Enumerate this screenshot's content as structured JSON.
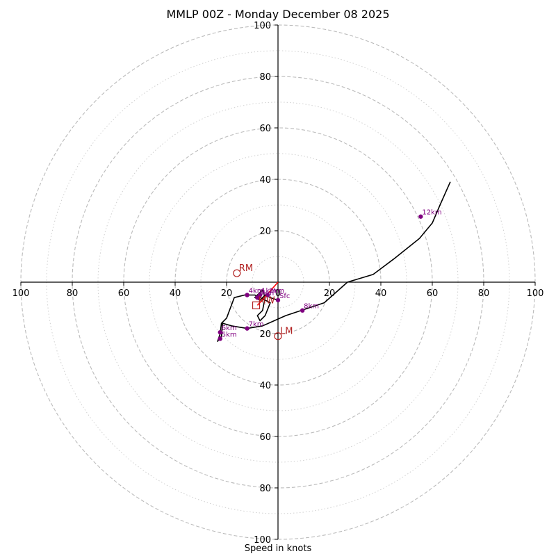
{
  "chart_data": {
    "type": "scatter",
    "subtype": "hodograph",
    "title": "MMLP 00Z - Monday December 08 2025",
    "xlabel": "Speed in knots",
    "ylabel": "",
    "xlim": [
      -100,
      100
    ],
    "ylim": [
      -100,
      100
    ],
    "rings_dashed": [
      20,
      40,
      60,
      80,
      100
    ],
    "rings_dotted": [
      10,
      30,
      50,
      70,
      90
    ],
    "x_tick_labels": [
      "100",
      "80",
      "60",
      "40",
      "20",
      "0",
      "20",
      "40",
      "60",
      "80",
      "100"
    ],
    "x_tick_values": [
      -100,
      -80,
      -60,
      -40,
      -20,
      0,
      20,
      40,
      60,
      80,
      100
    ],
    "y_tick_labels": [
      "100",
      "80",
      "60",
      "40",
      "20",
      "20",
      "40",
      "60",
      "80",
      "100"
    ],
    "y_tick_values": [
      100,
      80,
      60,
      40,
      20,
      -20,
      -40,
      -60,
      -80,
      -100
    ],
    "trace": [
      [
        0,
        -7
      ],
      [
        -3,
        -6
      ],
      [
        -5,
        -5
      ],
      [
        -7,
        -7
      ],
      [
        -9,
        -6
      ],
      [
        -8,
        -5
      ],
      [
        -7,
        -4
      ],
      [
        -6,
        -3
      ],
      [
        -5,
        -6
      ],
      [
        -6,
        -11
      ],
      [
        -8,
        -13
      ],
      [
        -7,
        -15
      ],
      [
        -5,
        -13
      ],
      [
        -3,
        -8
      ],
      [
        -7,
        -6
      ],
      [
        -9,
        -5
      ],
      [
        -13,
        -5
      ],
      [
        -17,
        -6
      ],
      [
        -20,
        -14
      ],
      [
        -22,
        -16
      ],
      [
        -22.5,
        -20
      ],
      [
        -23.5,
        -23
      ],
      [
        -22,
        -21
      ],
      [
        -21.5,
        -16
      ],
      [
        -18,
        -17
      ],
      [
        -12,
        -18
      ],
      [
        -6,
        -17
      ],
      [
        3,
        -13
      ],
      [
        9,
        -11
      ],
      [
        18,
        -8
      ],
      [
        27,
        0
      ],
      [
        37,
        3
      ],
      [
        45,
        9
      ],
      [
        55,
        17
      ],
      [
        60,
        23
      ],
      [
        63,
        30
      ],
      [
        67,
        39
      ]
    ],
    "storm_vector_line": [
      [
        0,
        0
      ],
      [
        -8,
        -9
      ]
    ],
    "height_points": [
      {
        "label": "1km",
        "u": -7,
        "v": -5
      },
      {
        "label": "2km",
        "u": -4,
        "v": -5
      },
      {
        "label": "3km",
        "u": -8,
        "v": -6
      },
      {
        "label": "4km",
        "u": -12,
        "v": -5
      },
      {
        "label": "5km",
        "u": -22.5,
        "v": -22
      },
      {
        "label": "6km",
        "u": -22.5,
        "v": -19.5
      },
      {
        "label": "7km",
        "u": -12,
        "v": -18
      },
      {
        "label": "8km",
        "u": 9.5,
        "v": -11
      },
      {
        "label": "12km",
        "u": 55.5,
        "v": 25.5
      },
      {
        "label": "Sfc",
        "u": 0,
        "v": -7
      }
    ],
    "motion_markers": [
      {
        "label": "RM",
        "u": -16,
        "v": 3.5,
        "shape": "circle"
      },
      {
        "label": "LM",
        "u": 0,
        "v": -21,
        "shape": "circle"
      },
      {
        "label": "MW",
        "u": -8.5,
        "v": -9,
        "shape": "square"
      }
    ],
    "colors": {
      "trace": "#000000",
      "height_points": "#800080",
      "motion": "#b22222",
      "storm_vector": "#ff0000",
      "grid": "#bbbbbb"
    }
  }
}
